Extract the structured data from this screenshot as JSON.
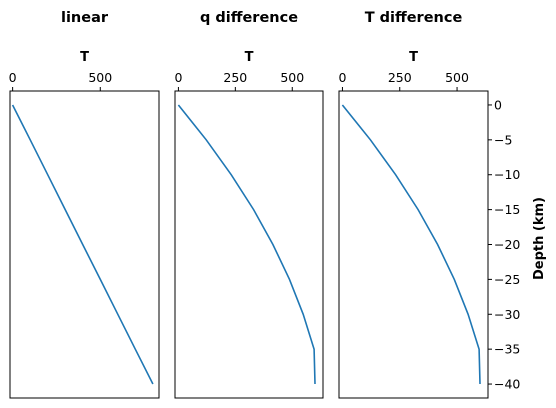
{
  "chart_data": {
    "type": "line",
    "shared_y": {
      "label": "Depth (km)",
      "ylim": [
        -42,
        2
      ],
      "ticks": [
        0,
        -5,
        -10,
        -15,
        -20,
        -25,
        -30,
        -35,
        -40
      ],
      "tick_labels": [
        "0",
        "−5",
        "−10",
        "−15",
        "−20",
        "−25",
        "−30",
        "−35",
        "−40"
      ]
    },
    "panels": [
      {
        "title": "linear",
        "xlabel": "T",
        "xlim": [
          -15,
          835
        ],
        "xticks": [
          0,
          500
        ],
        "xtick_labels": [
          "0",
          "500"
        ],
        "x": [
          0,
          100,
          200,
          300,
          400,
          500,
          600,
          700,
          800
        ],
        "y": [
          0,
          -5,
          -10,
          -15,
          -20,
          -25,
          -30,
          -35,
          -40
        ]
      },
      {
        "title": "q difference",
        "xlabel": "T",
        "xlim": [
          -15,
          635
        ],
        "xticks": [
          0,
          250,
          500
        ],
        "xtick_labels": [
          "0",
          "250",
          "500"
        ],
        "x": [
          0,
          122,
          232,
          330,
          415,
          488,
          548,
          596,
          600
        ],
        "y": [
          0,
          -5,
          -10,
          -15,
          -20,
          -25,
          -30,
          -35,
          -40
        ]
      },
      {
        "title": "T difference",
        "xlabel": "T",
        "xlim": [
          -15,
          635
        ],
        "xticks": [
          0,
          250,
          500
        ],
        "xtick_labels": [
          "0",
          "250",
          "500"
        ],
        "x": [
          0,
          122,
          232,
          330,
          415,
          488,
          548,
          596,
          600
        ],
        "y": [
          0,
          -5,
          -10,
          -15,
          -20,
          -25,
          -30,
          -35,
          -40
        ]
      }
    ],
    "grid": false,
    "legend": "none",
    "color": "#1f77b4"
  }
}
